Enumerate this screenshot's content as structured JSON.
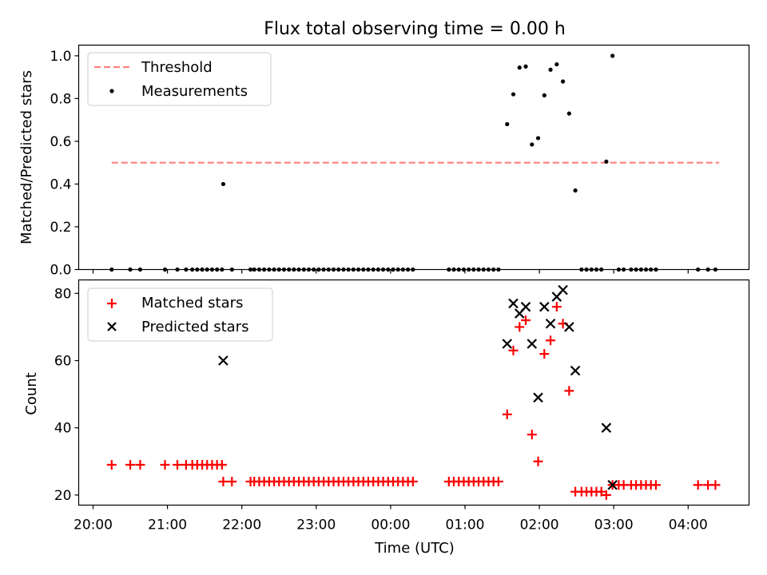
{
  "chart_data": [
    {
      "type": "scatter",
      "title": "Flux total observing time = 0.00 h",
      "xlabel": "",
      "ylabel": "Matched/Predicted stars",
      "ylim": [
        0,
        1.05
      ],
      "xlim": [
        "20:00",
        "04:45"
      ],
      "yticks": [
        "0.0",
        "0.2",
        "0.4",
        "0.6",
        "0.8",
        "1.0"
      ],
      "grid": false,
      "legend_position": "top-left",
      "legend": [
        {
          "label": "Threshold",
          "style": "dashed-line",
          "color": "#ff7f7f"
        },
        {
          "label": "Measurements",
          "style": "dot",
          "color": "#000000"
        }
      ],
      "threshold": {
        "y": 0.5,
        "x": [
          "20:15",
          "04:25"
        ]
      },
      "measurements": [
        [
          "20:15",
          0
        ],
        [
          "20:30",
          0
        ],
        [
          "20:38",
          0
        ],
        [
          "20:58",
          0
        ],
        [
          "21:08",
          0
        ],
        [
          "21:15",
          0
        ],
        [
          "21:20",
          0
        ],
        [
          "21:24",
          0
        ],
        [
          "21:28",
          0
        ],
        [
          "21:32",
          0
        ],
        [
          "21:36",
          0
        ],
        [
          "21:40",
          0
        ],
        [
          "21:44",
          0
        ],
        [
          "21:45",
          0.4
        ],
        [
          "21:52",
          0
        ],
        [
          "22:07",
          0
        ],
        [
          "22:10",
          0
        ],
        [
          "22:14",
          0
        ],
        [
          "22:18",
          0
        ],
        [
          "22:22",
          0
        ],
        [
          "22:26",
          0
        ],
        [
          "22:30",
          0
        ],
        [
          "22:34",
          0
        ],
        [
          "22:38",
          0
        ],
        [
          "22:42",
          0
        ],
        [
          "22:46",
          0
        ],
        [
          "22:50",
          0
        ],
        [
          "22:54",
          0
        ],
        [
          "22:58",
          0
        ],
        [
          "23:02",
          0
        ],
        [
          "23:06",
          0
        ],
        [
          "23:10",
          0
        ],
        [
          "23:14",
          0
        ],
        [
          "23:18",
          0
        ],
        [
          "23:22",
          0
        ],
        [
          "23:26",
          0
        ],
        [
          "23:30",
          0
        ],
        [
          "23:34",
          0
        ],
        [
          "23:38",
          0
        ],
        [
          "23:42",
          0
        ],
        [
          "23:46",
          0
        ],
        [
          "23:50",
          0
        ],
        [
          "23:54",
          0
        ],
        [
          "23:58",
          0
        ],
        [
          "00:02",
          0
        ],
        [
          "00:06",
          0
        ],
        [
          "00:10",
          0
        ],
        [
          "00:14",
          0
        ],
        [
          "00:18",
          0
        ],
        [
          "00:47",
          0
        ],
        [
          "00:51",
          0
        ],
        [
          "00:55",
          0
        ],
        [
          "00:59",
          0
        ],
        [
          "01:03",
          0
        ],
        [
          "01:07",
          0
        ],
        [
          "01:11",
          0
        ],
        [
          "01:15",
          0
        ],
        [
          "01:19",
          0
        ],
        [
          "01:23",
          0
        ],
        [
          "01:27",
          0
        ],
        [
          "01:34",
          0.68
        ],
        [
          "01:39",
          0.82
        ],
        [
          "01:44",
          0.945
        ],
        [
          "01:49",
          0.95
        ],
        [
          "01:54",
          0.585
        ],
        [
          "01:59",
          0.615
        ],
        [
          "02:04",
          0.815
        ],
        [
          "02:09",
          0.935
        ],
        [
          "02:14",
          0.96
        ],
        [
          "02:19",
          0.88
        ],
        [
          "02:24",
          0.73
        ],
        [
          "02:29",
          0.37
        ],
        [
          "02:34",
          0
        ],
        [
          "02:38",
          0
        ],
        [
          "02:42",
          0
        ],
        [
          "02:46",
          0
        ],
        [
          "02:50",
          0
        ],
        [
          "02:54",
          0.505
        ],
        [
          "02:59",
          1.0
        ],
        [
          "03:04",
          0
        ],
        [
          "03:08",
          0
        ],
        [
          "03:14",
          0
        ],
        [
          "03:18",
          0
        ],
        [
          "03:22",
          0
        ],
        [
          "03:26",
          0
        ],
        [
          "03:30",
          0
        ],
        [
          "03:34",
          0
        ],
        [
          "04:08",
          0
        ],
        [
          "04:16",
          0
        ],
        [
          "04:22",
          0
        ]
      ]
    },
    {
      "type": "scatter",
      "title": "",
      "xlabel": "Time (UTC)",
      "ylabel": "Count",
      "ylim": [
        17,
        84
      ],
      "xlim": [
        "20:00",
        "04:45"
      ],
      "yticks": [
        "20",
        "40",
        "60",
        "80"
      ],
      "xticks": [
        "20:00",
        "21:00",
        "22:00",
        "23:00",
        "00:00",
        "01:00",
        "02:00",
        "03:00",
        "04:00"
      ],
      "grid": false,
      "legend_position": "top-left",
      "legend": [
        {
          "label": "Matched stars",
          "style": "plus",
          "color": "#ff0000"
        },
        {
          "label": "Predicted stars",
          "style": "x",
          "color": "#000000"
        }
      ],
      "series": [
        {
          "name": "Matched stars",
          "points": [
            [
              "20:15",
              29
            ],
            [
              "20:30",
              29
            ],
            [
              "20:38",
              29
            ],
            [
              "20:58",
              29
            ],
            [
              "21:08",
              29
            ],
            [
              "21:15",
              29
            ],
            [
              "21:20",
              29
            ],
            [
              "21:24",
              29
            ],
            [
              "21:28",
              29
            ],
            [
              "21:32",
              29
            ],
            [
              "21:36",
              29
            ],
            [
              "21:40",
              29
            ],
            [
              "21:44",
              29
            ],
            [
              "21:45",
              24
            ],
            [
              "21:52",
              24
            ],
            [
              "22:07",
              24
            ],
            [
              "22:10",
              24
            ],
            [
              "22:14",
              24
            ],
            [
              "22:18",
              24
            ],
            [
              "22:22",
              24
            ],
            [
              "22:26",
              24
            ],
            [
              "22:30",
              24
            ],
            [
              "22:34",
              24
            ],
            [
              "22:38",
              24
            ],
            [
              "22:42",
              24
            ],
            [
              "22:46",
              24
            ],
            [
              "22:50",
              24
            ],
            [
              "22:54",
              24
            ],
            [
              "22:58",
              24
            ],
            [
              "23:02",
              24
            ],
            [
              "23:06",
              24
            ],
            [
              "23:10",
              24
            ],
            [
              "23:14",
              24
            ],
            [
              "23:18",
              24
            ],
            [
              "23:22",
              24
            ],
            [
              "23:26",
              24
            ],
            [
              "23:30",
              24
            ],
            [
              "23:34",
              24
            ],
            [
              "23:38",
              24
            ],
            [
              "23:42",
              24
            ],
            [
              "23:46",
              24
            ],
            [
              "23:50",
              24
            ],
            [
              "23:54",
              24
            ],
            [
              "23:58",
              24
            ],
            [
              "00:02",
              24
            ],
            [
              "00:06",
              24
            ],
            [
              "00:10",
              24
            ],
            [
              "00:14",
              24
            ],
            [
              "00:18",
              24
            ],
            [
              "00:47",
              24
            ],
            [
              "00:51",
              24
            ],
            [
              "00:55",
              24
            ],
            [
              "00:59",
              24
            ],
            [
              "01:03",
              24
            ],
            [
              "01:07",
              24
            ],
            [
              "01:11",
              24
            ],
            [
              "01:15",
              24
            ],
            [
              "01:19",
              24
            ],
            [
              "01:23",
              24
            ],
            [
              "01:27",
              24
            ],
            [
              "01:34",
              44
            ],
            [
              "01:39",
              63
            ],
            [
              "01:44",
              70
            ],
            [
              "01:49",
              72
            ],
            [
              "01:54",
              38
            ],
            [
              "01:59",
              30
            ],
            [
              "02:04",
              62
            ],
            [
              "02:09",
              66
            ],
            [
              "02:14",
              76
            ],
            [
              "02:19",
              71
            ],
            [
              "02:24",
              51
            ],
            [
              "02:29",
              21
            ],
            [
              "02:34",
              21
            ],
            [
              "02:38",
              21
            ],
            [
              "02:42",
              21
            ],
            [
              "02:46",
              21
            ],
            [
              "02:50",
              21
            ],
            [
              "02:54",
              20
            ],
            [
              "02:59",
              23
            ],
            [
              "03:04",
              23
            ],
            [
              "03:08",
              23
            ],
            [
              "03:14",
              23
            ],
            [
              "03:18",
              23
            ],
            [
              "03:22",
              23
            ],
            [
              "03:26",
              23
            ],
            [
              "03:30",
              23
            ],
            [
              "03:34",
              23
            ],
            [
              "04:08",
              23
            ],
            [
              "04:16",
              23
            ],
            [
              "04:22",
              23
            ]
          ]
        },
        {
          "name": "Predicted stars",
          "points": [
            [
              "21:45",
              60
            ],
            [
              "01:34",
              65
            ],
            [
              "01:39",
              77
            ],
            [
              "01:44",
              74
            ],
            [
              "01:49",
              76
            ],
            [
              "01:54",
              65
            ],
            [
              "01:59",
              49
            ],
            [
              "02:04",
              76
            ],
            [
              "02:09",
              71
            ],
            [
              "02:14",
              79
            ],
            [
              "02:19",
              81
            ],
            [
              "02:24",
              70
            ],
            [
              "02:29",
              57
            ],
            [
              "02:54",
              40
            ],
            [
              "02:59",
              23
            ]
          ]
        }
      ]
    }
  ]
}
